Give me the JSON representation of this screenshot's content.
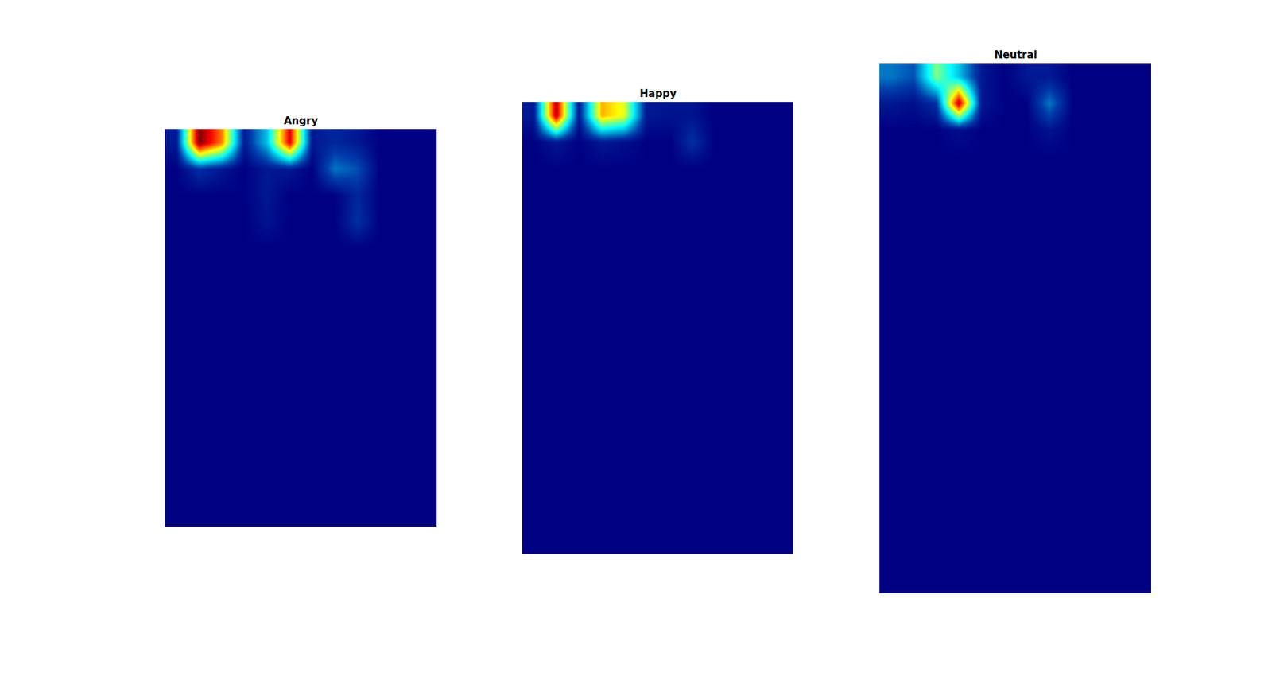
{
  "chart_data": [
    {
      "type": "heatmap",
      "title": "Angry",
      "tick_labels": false,
      "zlim": [
        0,
        1
      ],
      "cells": [
        [
          0.05,
          1.0,
          0.75,
          0.05,
          0.3,
          0.9,
          0.05,
          0.08,
          0.05,
          0,
          0,
          0
        ],
        [
          0,
          0.1,
          0.05,
          0,
          0.05,
          0.05,
          0,
          0.2,
          0.15,
          0,
          0,
          0
        ],
        [
          0,
          0,
          0,
          0,
          0.05,
          0,
          0,
          0,
          0.08,
          0,
          0,
          0
        ],
        [
          0,
          0,
          0,
          0,
          0.04,
          0,
          0,
          0,
          0.1,
          0,
          0,
          0
        ],
        [
          0,
          0,
          0,
          0,
          0,
          0,
          0,
          0,
          0,
          0,
          0,
          0
        ],
        [
          0,
          0,
          0,
          0,
          0,
          0,
          0,
          0,
          0,
          0,
          0,
          0
        ],
        [
          0,
          0,
          0,
          0,
          0,
          0,
          0,
          0,
          0,
          0,
          0,
          0
        ],
        [
          0,
          0,
          0,
          0,
          0,
          0,
          0,
          0,
          0,
          0,
          0,
          0
        ],
        [
          0,
          0,
          0,
          0,
          0,
          0,
          0,
          0,
          0,
          0,
          0,
          0
        ],
        [
          0,
          0,
          0,
          0,
          0,
          0,
          0,
          0,
          0,
          0,
          0,
          0
        ],
        [
          0,
          0,
          0,
          0,
          0,
          0,
          0,
          0,
          0,
          0,
          0,
          0
        ],
        [
          0,
          0,
          0,
          0,
          0,
          0,
          0,
          0,
          0,
          0,
          0,
          0
        ],
        [
          0,
          0,
          0,
          0,
          0,
          0,
          0,
          0,
          0,
          0,
          0,
          0
        ],
        [
          0,
          0,
          0,
          0,
          0,
          0,
          0,
          0,
          0,
          0,
          0,
          0
        ],
        [
          0,
          0,
          0,
          0,
          0,
          0,
          0,
          0,
          0,
          0,
          0,
          0
        ]
      ]
    },
    {
      "type": "heatmap",
      "title": "Happy",
      "tick_labels": false,
      "zlim": [
        0,
        1
      ],
      "cells": [
        [
          0.05,
          0.95,
          0.05,
          0.7,
          0.6,
          0.05,
          0.04,
          0.04,
          0,
          0,
          0,
          0
        ],
        [
          0,
          0.05,
          0,
          0.05,
          0.03,
          0,
          0,
          0.1,
          0,
          0,
          0,
          0
        ],
        [
          0,
          0,
          0,
          0,
          0,
          0,
          0,
          0,
          0,
          0,
          0,
          0
        ],
        [
          0,
          0,
          0,
          0,
          0,
          0,
          0,
          0,
          0,
          0,
          0,
          0
        ],
        [
          0,
          0,
          0,
          0,
          0,
          0,
          0,
          0,
          0,
          0,
          0,
          0
        ],
        [
          0,
          0,
          0,
          0,
          0,
          0,
          0,
          0,
          0,
          0,
          0,
          0
        ],
        [
          0,
          0,
          0,
          0,
          0,
          0,
          0,
          0,
          0,
          0,
          0,
          0
        ],
        [
          0,
          0,
          0,
          0,
          0,
          0,
          0,
          0,
          0,
          0,
          0,
          0
        ],
        [
          0,
          0,
          0,
          0,
          0,
          0,
          0,
          0,
          0,
          0,
          0,
          0
        ],
        [
          0,
          0,
          0,
          0,
          0,
          0,
          0,
          0,
          0,
          0,
          0,
          0
        ],
        [
          0,
          0,
          0,
          0,
          0,
          0,
          0,
          0,
          0,
          0,
          0,
          0
        ],
        [
          0,
          0,
          0,
          0,
          0,
          0,
          0,
          0,
          0,
          0,
          0,
          0
        ],
        [
          0,
          0,
          0,
          0,
          0,
          0,
          0,
          0,
          0,
          0,
          0,
          0
        ],
        [
          0,
          0,
          0,
          0,
          0,
          0,
          0,
          0,
          0,
          0,
          0,
          0
        ],
        [
          0,
          0,
          0,
          0,
          0,
          0,
          0,
          0,
          0,
          0,
          0,
          0
        ],
        [
          0,
          0,
          0,
          0,
          0,
          0,
          0,
          0,
          0,
          0,
          0,
          0
        ],
        [
          0,
          0,
          0,
          0,
          0,
          0,
          0,
          0,
          0,
          0,
          0,
          0
        ]
      ]
    },
    {
      "type": "heatmap",
      "title": "Neutral",
      "tick_labels": false,
      "zlim": [
        0,
        1
      ],
      "cells": [
        [
          0.2,
          0.15,
          0.5,
          0.3,
          0.05,
          0,
          0.05,
          0.05,
          0,
          0,
          0,
          0
        ],
        [
          0.05,
          0.03,
          0.1,
          0.95,
          0.05,
          0,
          0,
          0.2,
          0,
          0,
          0,
          0
        ],
        [
          0,
          0,
          0,
          0.03,
          0,
          0,
          0,
          0.04,
          0,
          0,
          0,
          0
        ],
        [
          0,
          0,
          0,
          0,
          0,
          0,
          0,
          0,
          0,
          0,
          0,
          0
        ],
        [
          0,
          0,
          0,
          0,
          0,
          0,
          0,
          0,
          0,
          0,
          0,
          0
        ],
        [
          0,
          0,
          0,
          0,
          0,
          0,
          0,
          0,
          0,
          0,
          0,
          0
        ],
        [
          0,
          0,
          0,
          0,
          0,
          0,
          0,
          0,
          0,
          0,
          0,
          0
        ],
        [
          0,
          0,
          0,
          0,
          0,
          0,
          0,
          0,
          0,
          0,
          0,
          0
        ],
        [
          0,
          0,
          0,
          0,
          0,
          0,
          0,
          0,
          0,
          0,
          0,
          0
        ],
        [
          0,
          0,
          0,
          0,
          0,
          0,
          0,
          0,
          0,
          0,
          0,
          0
        ],
        [
          0,
          0,
          0,
          0,
          0,
          0,
          0,
          0,
          0,
          0,
          0,
          0
        ],
        [
          0,
          0,
          0,
          0,
          0,
          0,
          0,
          0,
          0,
          0,
          0,
          0
        ],
        [
          0,
          0,
          0,
          0,
          0,
          0,
          0,
          0,
          0,
          0,
          0,
          0
        ],
        [
          0,
          0,
          0,
          0,
          0,
          0,
          0,
          0,
          0,
          0,
          0,
          0
        ],
        [
          0,
          0,
          0,
          0,
          0,
          0,
          0,
          0,
          0,
          0,
          0,
          0
        ],
        [
          0,
          0,
          0,
          0,
          0,
          0,
          0,
          0,
          0,
          0,
          0,
          0
        ],
        [
          0,
          0,
          0,
          0,
          0,
          0,
          0,
          0,
          0,
          0,
          0,
          0
        ],
        [
          0,
          0,
          0,
          0,
          0,
          0,
          0,
          0,
          0,
          0,
          0,
          0
        ],
        [
          0,
          0,
          0,
          0,
          0,
          0,
          0,
          0,
          0,
          0,
          0,
          0
        ],
        [
          0,
          0,
          0,
          0,
          0,
          0,
          0,
          0,
          0,
          0,
          0,
          0
        ]
      ]
    }
  ]
}
